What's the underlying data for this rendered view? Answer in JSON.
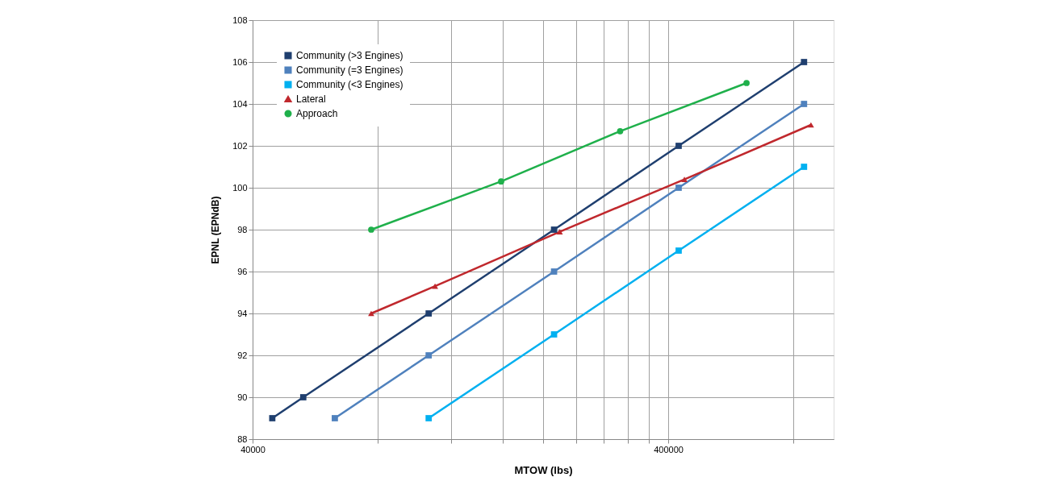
{
  "chart_data": {
    "type": "line",
    "xlabel": "MTOW (lbs)",
    "ylabel": "EPNL (EPNdB)",
    "log": "x",
    "xlim": [
      40000,
      1000000
    ],
    "xticks": [
      40000,
      {
        "value": 80000,
        "label": null
      },
      {
        "value": 120000,
        "label": null
      },
      {
        "value": 160000,
        "label": null
      },
      {
        "value": 200000,
        "label": null
      },
      {
        "value": 240000,
        "label": null
      },
      {
        "value": 280000,
        "label": null
      },
      {
        "value": 320000,
        "label": null
      },
      {
        "value": 360000,
        "label": null
      },
      400000,
      {
        "value": 800000,
        "label": null
      }
    ],
    "ylim": [
      88,
      108
    ],
    "yticks": [
      88,
      90,
      92,
      94,
      96,
      98,
      100,
      102,
      104,
      106,
      108
    ],
    "grid": true,
    "legend": "top left",
    "series": [
      {
        "name": "Community (>3 Engines)",
        "color": "#1f3f6f",
        "marker": "square",
        "x": [
          44609,
          52960,
          106100,
          212500,
          423800,
          848767
        ],
        "values": [
          89,
          90,
          94,
          98,
          102,
          106
        ]
      },
      {
        "name": "Community (=3 Engines)",
        "color": "#4f81bd",
        "marker": "square",
        "x": [
          63086,
          106100,
          212500,
          423800,
          848767
        ],
        "values": [
          89,
          92,
          96,
          100,
          104
        ]
      },
      {
        "name": "Community (<3 Engines)",
        "color": "#00b0f0",
        "marker": "square",
        "x": [
          106097,
          212500,
          423800,
          848767
        ],
        "values": [
          89,
          93,
          97,
          101
        ]
      },
      {
        "name": "Lateral",
        "color": "#c0282d",
        "marker": "triangle",
        "x": [
          77162,
          109900,
          219300,
          437500,
          881849
        ],
        "values": [
          94,
          95.3,
          97.9,
          100.4,
          103
        ]
      },
      {
        "name": "Approach",
        "color": "#1fb04b",
        "marker": "circle",
        "x": [
          77162,
          158500,
          306400,
          617294
        ],
        "values": [
          98,
          100.3,
          102.7,
          105
        ]
      }
    ]
  }
}
